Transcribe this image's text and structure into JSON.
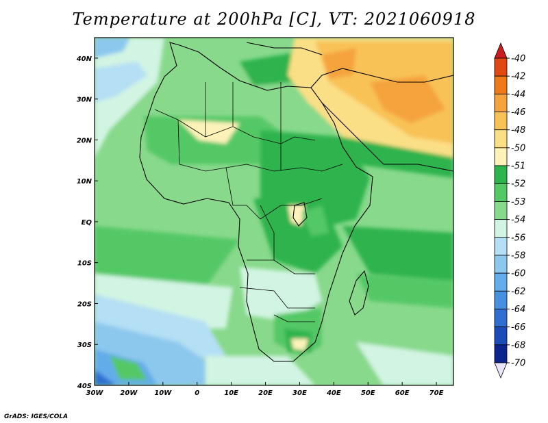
{
  "title": "Temperature at 200hPa [C], VT: 2021060918",
  "footer": "GrADS: IGES/COLA",
  "map": {
    "region": "Africa",
    "lon_range": [
      -30,
      75
    ],
    "lat_range": [
      -40,
      45
    ],
    "lon_ticks": [
      "30W",
      "20W",
      "10W",
      "0",
      "10E",
      "20E",
      "30E",
      "40E",
      "50E",
      "60E",
      "70E"
    ],
    "lat_ticks": [
      "40N",
      "30N",
      "20N",
      "10N",
      "EQ",
      "10S",
      "20S",
      "30S",
      "40S"
    ]
  },
  "colorbar": {
    "labels": [
      "-40",
      "-42",
      "-44",
      "-46",
      "-48",
      "-50",
      "-51",
      "-52",
      "-53",
      "-54",
      "-56",
      "-58",
      "-60",
      "-62",
      "-64",
      "-66",
      "-68",
      "-70"
    ],
    "colors": [
      "#c81e1e",
      "#e04a12",
      "#ee7a1a",
      "#f5a33c",
      "#f8c257",
      "#fbdf86",
      "#fdf3b9",
      "#2fb34d",
      "#55c866",
      "#88d98c",
      "#d2f4e3",
      "#b4dff4",
      "#8cc8ee",
      "#64acea",
      "#4690df",
      "#2e6fd0",
      "#1a4bb8",
      "#0c258e",
      "#e8e4fa"
    ]
  }
}
